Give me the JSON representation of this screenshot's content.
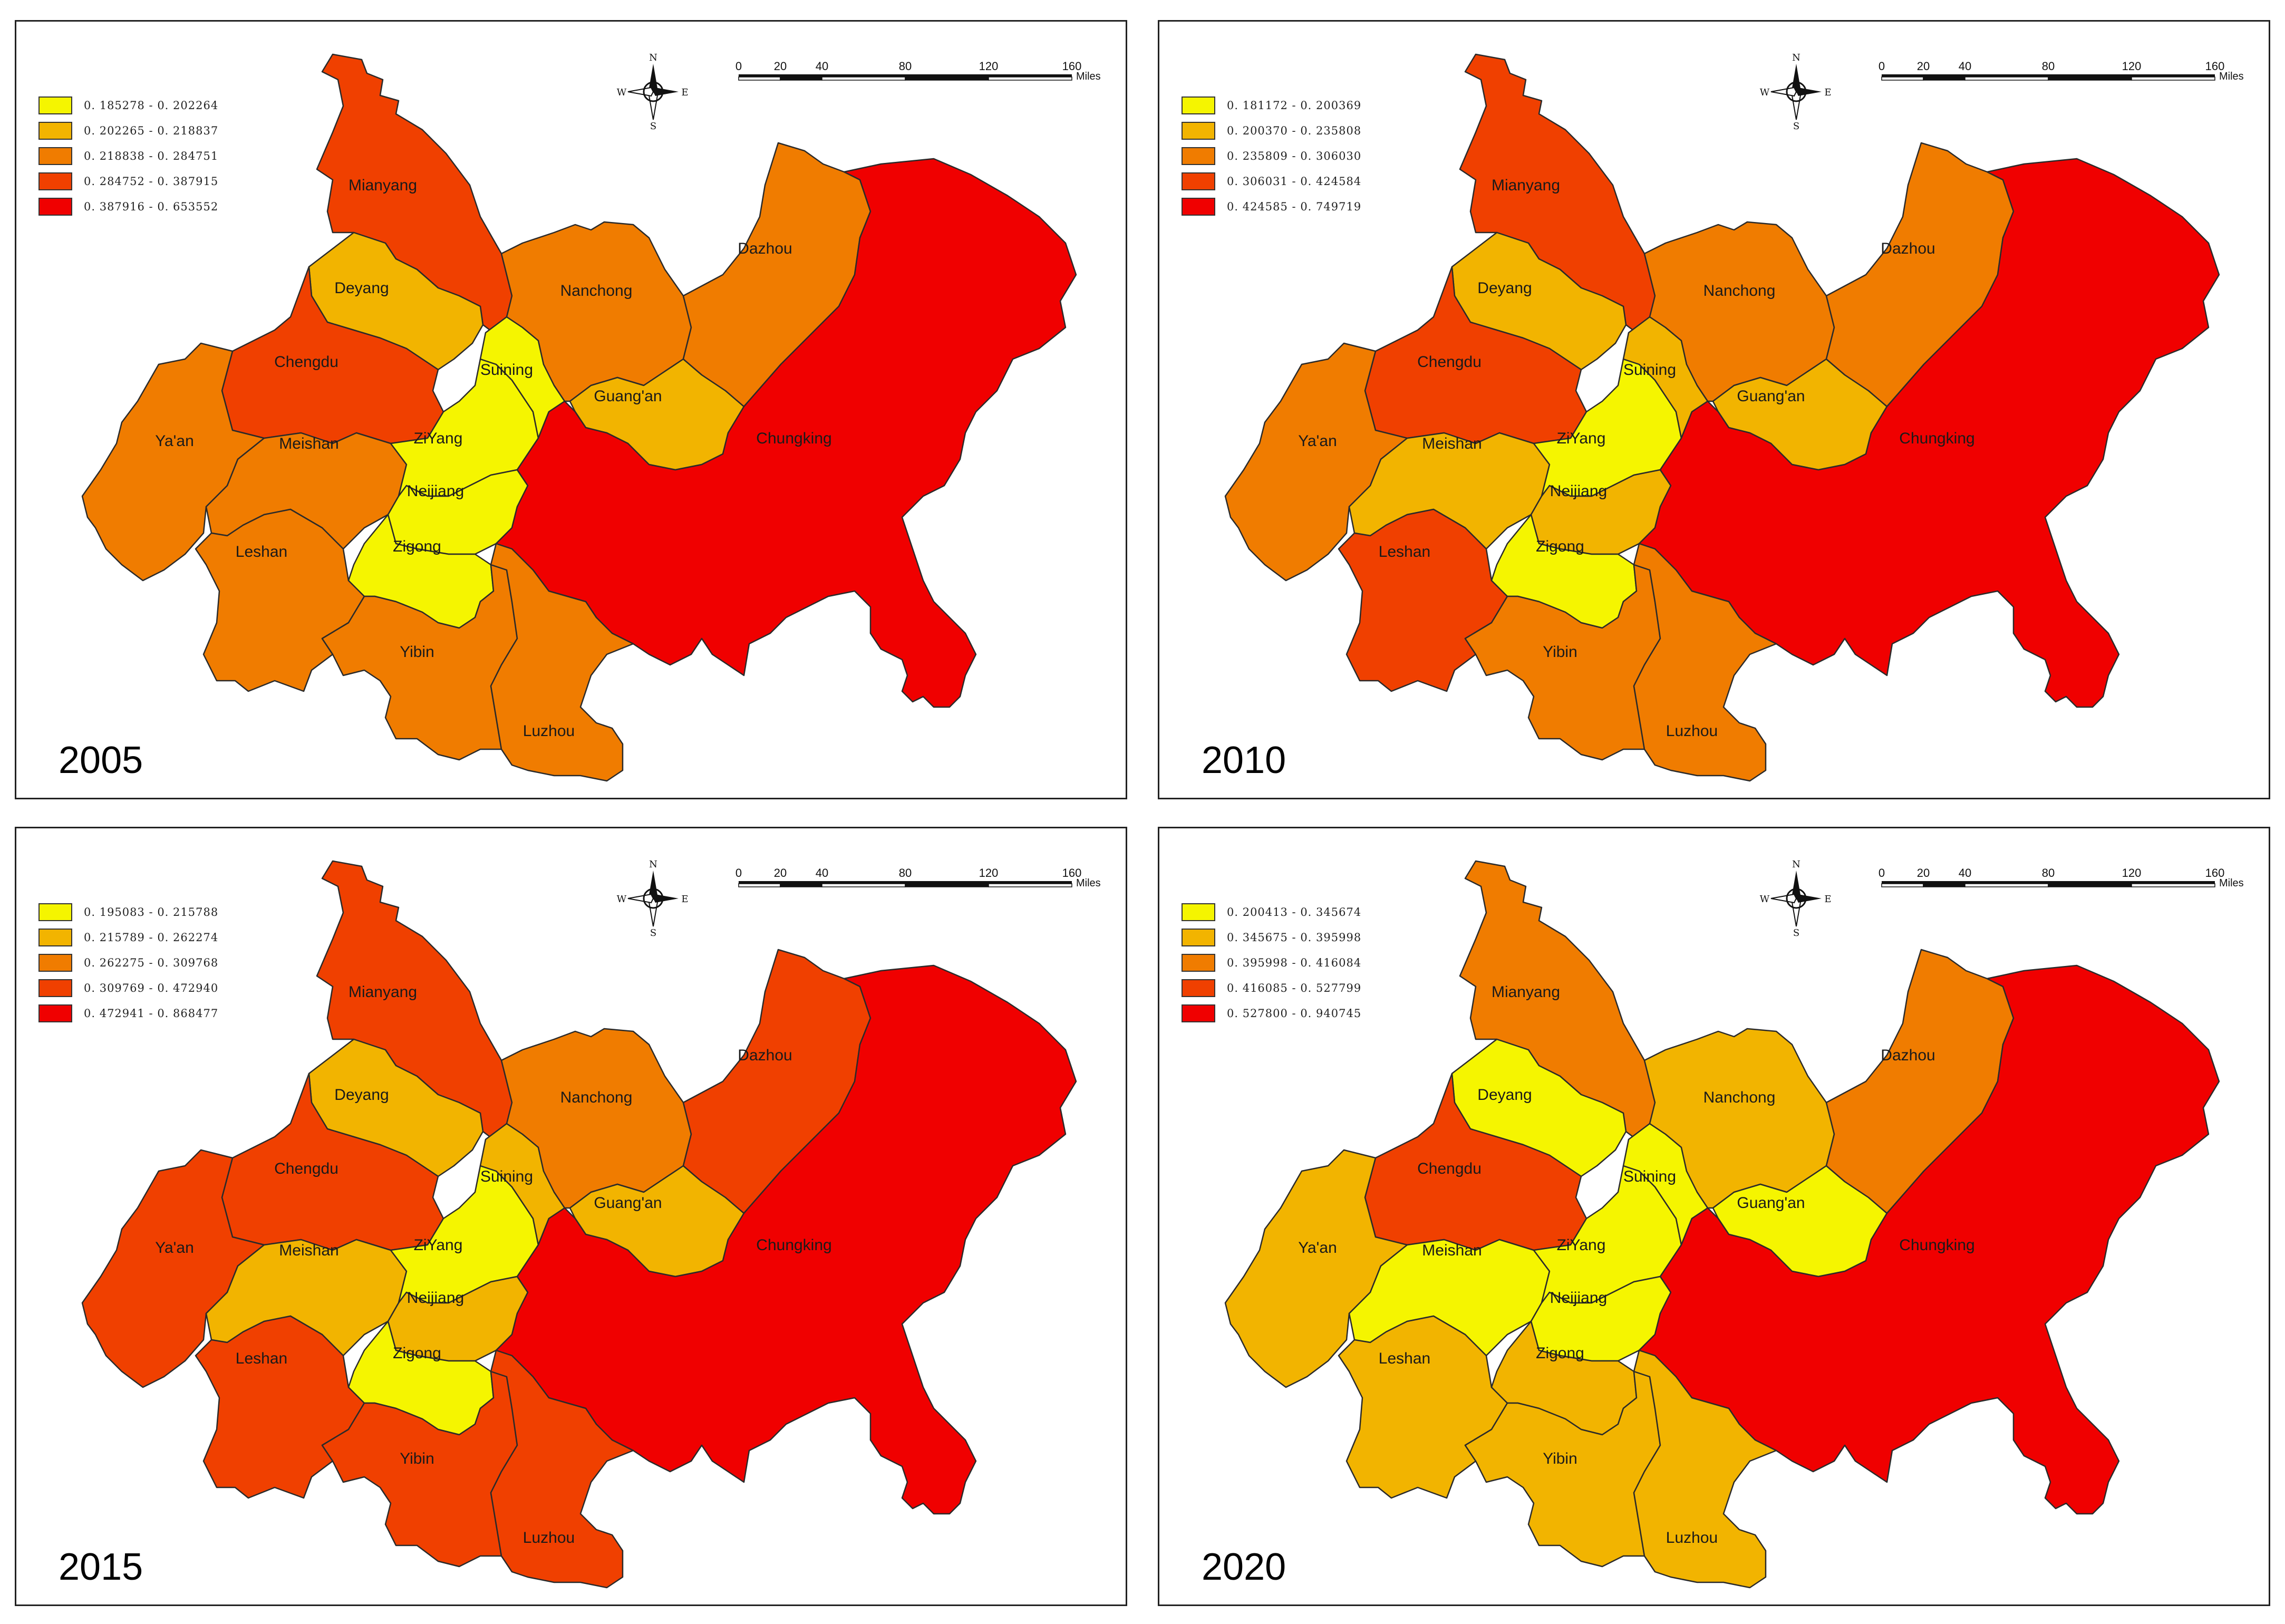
{
  "colors": {
    "c1": "#f5f500",
    "c2": "#f2b400",
    "c3": "#f07c00",
    "c4": "#f04000",
    "c5": "#f00000"
  },
  "compass": {
    "n": "N",
    "s": "S",
    "e": "E",
    "w": "W"
  },
  "scale": {
    "ticks": [
      "0",
      "20",
      "40",
      "80",
      "120",
      "160"
    ],
    "unit": "Miles"
  },
  "panels": [
    {
      "year": "2005",
      "legend": [
        "0. 185278 - 0. 202264",
        "0. 202265 - 0. 218837",
        "0. 218838 - 0. 284751",
        "0. 284752 - 0. 387915",
        "0. 387916 - 0. 653552"
      ],
      "regions": {
        "mianyang": 4,
        "deyang": 2,
        "chengdu": 4,
        "yaan": 3,
        "meishan": 3,
        "leshan": 3,
        "ziyang": 1,
        "neijiang": 1,
        "zigong": 1,
        "suining": 1,
        "nanchong": 3,
        "guangan": 2,
        "dazhou": 3,
        "chungking": 5,
        "yibin": 3,
        "luzhou": 3
      }
    },
    {
      "year": "2010",
      "legend": [
        "0. 181172 - 0. 200369",
        "0. 200370 - 0. 235808",
        "0. 235809 - 0. 306030",
        "0. 306031 - 0. 424584",
        "0. 424585 - 0. 749719"
      ],
      "regions": {
        "mianyang": 4,
        "deyang": 2,
        "chengdu": 4,
        "yaan": 3,
        "meishan": 2,
        "leshan": 4,
        "ziyang": 1,
        "neijiang": 2,
        "zigong": 1,
        "suining": 2,
        "nanchong": 3,
        "guangan": 2,
        "dazhou": 3,
        "chungking": 5,
        "yibin": 3,
        "luzhou": 3
      }
    },
    {
      "year": "2015",
      "legend": [
        "0. 195083 - 0. 215788",
        "0. 215789 - 0. 262274",
        "0. 262275 - 0. 309768",
        "0. 309769 - 0. 472940",
        "0. 472941 - 0. 868477"
      ],
      "regions": {
        "mianyang": 4,
        "deyang": 2,
        "chengdu": 4,
        "yaan": 4,
        "meishan": 2,
        "leshan": 4,
        "ziyang": 1,
        "neijiang": 2,
        "zigong": 1,
        "suining": 2,
        "nanchong": 3,
        "guangan": 2,
        "dazhou": 4,
        "chungking": 5,
        "yibin": 4,
        "luzhou": 4
      }
    },
    {
      "year": "2020",
      "legend": [
        "0. 200413 - 0. 345674",
        "0. 345675 - 0. 395998",
        "0. 395998 - 0. 416084",
        "0. 416085 - 0. 527799",
        "0. 527800 - 0. 940745"
      ],
      "regions": {
        "mianyang": 3,
        "deyang": 1,
        "chengdu": 4,
        "yaan": 2,
        "meishan": 1,
        "leshan": 2,
        "ziyang": 1,
        "neijiang": 1,
        "zigong": 2,
        "suining": 1,
        "nanchong": 2,
        "guangan": 1,
        "dazhou": 3,
        "chungking": 5,
        "yibin": 2,
        "luzhou": 2
      }
    }
  ],
  "region_names": {
    "mianyang": "Mianyang",
    "deyang": "Deyang",
    "chengdu": "Chengdu",
    "yaan": "Ya'an",
    "meishan": "Meishan",
    "leshan": "Leshan",
    "ziyang": "ZiYang",
    "neijiang": "Neijiang",
    "zigong": "Zigong",
    "suining": "Suining",
    "nanchong": "Nanchong",
    "guangan": "Guang'an",
    "dazhou": "Dazhou",
    "chungking": "Chungking",
    "yibin": "Yibin",
    "luzhou": "Luzhou"
  }
}
